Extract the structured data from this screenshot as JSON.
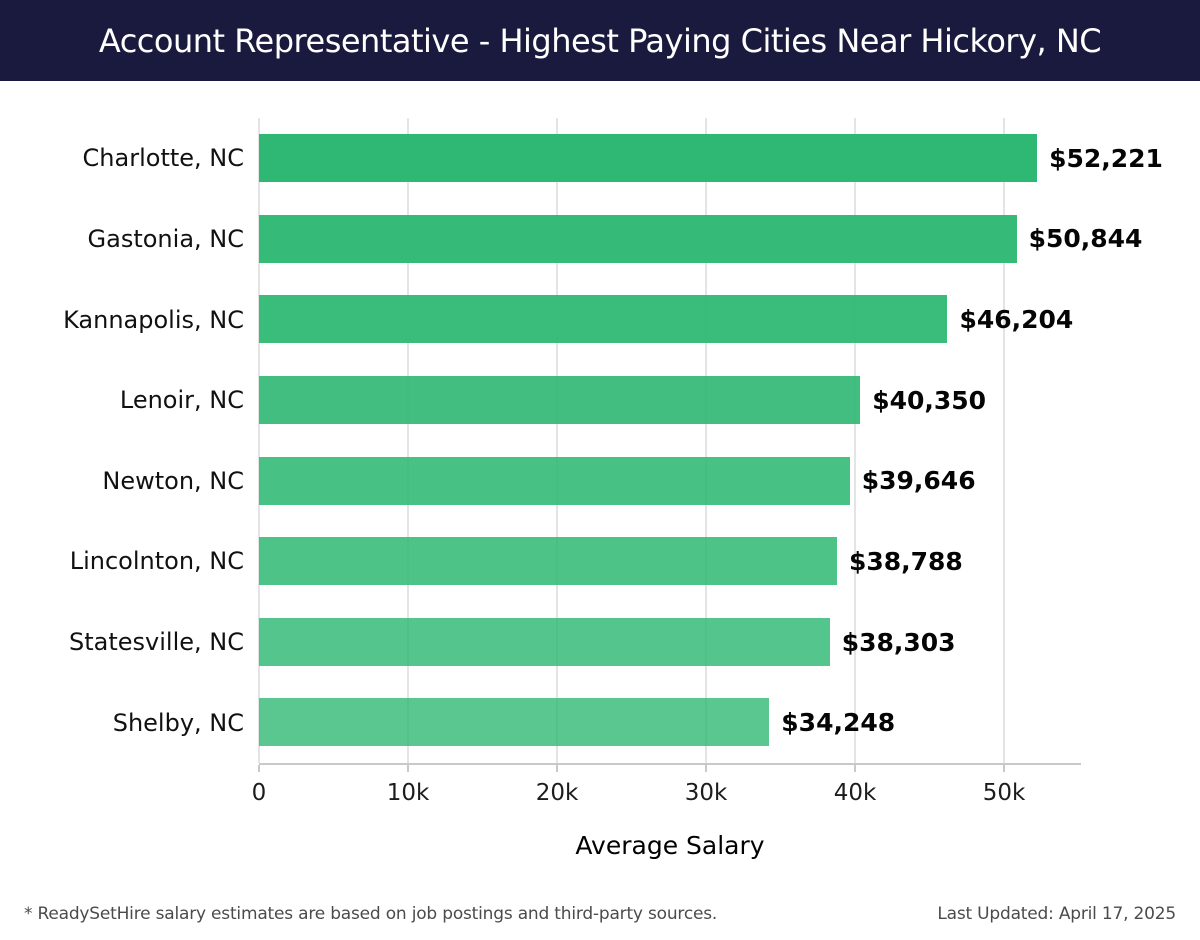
{
  "header": {
    "title": "Account Representative - Highest Paying Cities Near Hickory, NC"
  },
  "chart_data": {
    "type": "bar",
    "orientation": "horizontal",
    "title": "Account Representative - Highest Paying Cities Near Hickory, NC",
    "categories": [
      "Charlotte, NC",
      "Gastonia, NC",
      "Kannapolis, NC",
      "Lenoir, NC",
      "Newton, NC",
      "Lincolnton, NC",
      "Statesville, NC",
      "Shelby, NC"
    ],
    "values": [
      52221,
      50844,
      46204,
      40350,
      39646,
      38788,
      38303,
      34248
    ],
    "value_labels": [
      "$52,221",
      "$50,844",
      "$46,204",
      "$40,350",
      "$39,646",
      "$38,788",
      "$38,303",
      "$34,248"
    ],
    "xlabel": "Average Salary",
    "ylabel": "",
    "xlim": [
      0,
      55170
    ],
    "x_ticks": [
      {
        "value": 0,
        "label": "0"
      },
      {
        "value": 10000,
        "label": "10k"
      },
      {
        "value": 20000,
        "label": "20k"
      },
      {
        "value": 30000,
        "label": "30k"
      },
      {
        "value": 40000,
        "label": "40k"
      },
      {
        "value": 50000,
        "label": "50k"
      }
    ],
    "grid": true,
    "legend": false,
    "bar_base_color": "#2eb873",
    "bar_opacities": [
      1.0,
      0.97,
      0.94,
      0.91,
      0.88,
      0.85,
      0.82,
      0.79
    ]
  },
  "colors": {
    "header_bg": "#1a1a3e",
    "header_text": "#ffffff",
    "axis_line": "#c9c9c9",
    "gridline": "#e4e4e4",
    "value_text": "#050505",
    "footer_text": "#4b4b4b"
  },
  "footer": {
    "disclaimer": "* ReadySetHire salary estimates are based on job postings and third-party sources.",
    "last_updated": "Last Updated: April 17, 2025"
  }
}
